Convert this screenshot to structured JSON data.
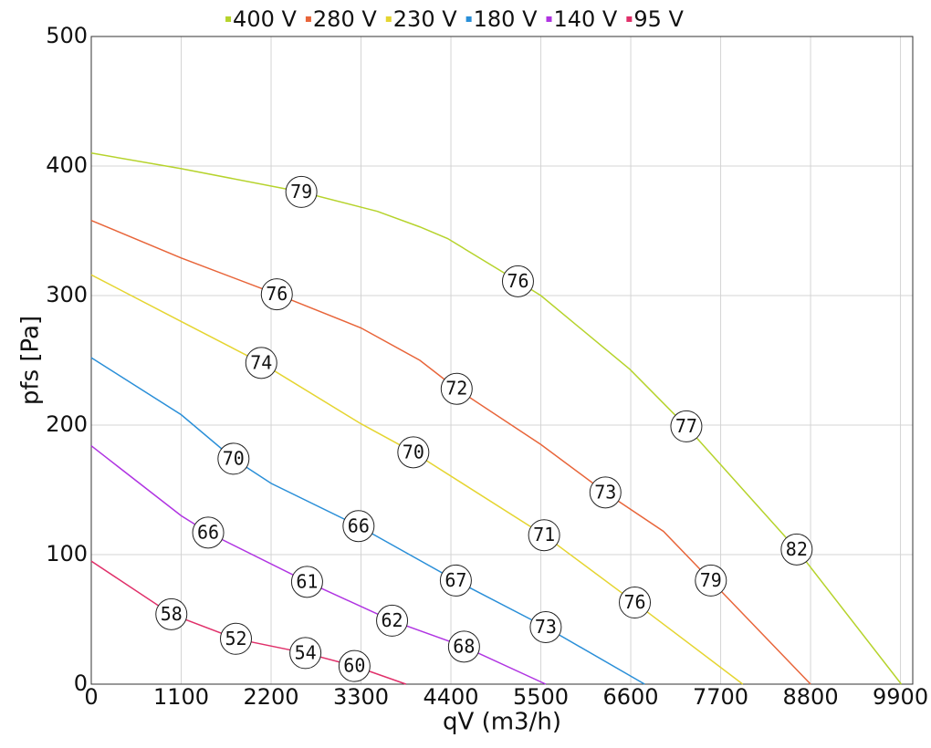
{
  "chart_data": {
    "type": "line",
    "x_label": "qV (m3/h)",
    "y_label": "pfs [Pa]",
    "xlim": [
      0,
      10050
    ],
    "ylim": [
      0,
      500
    ],
    "xticks": [
      0,
      1100,
      2200,
      3300,
      4400,
      5500,
      6600,
      7700,
      8800,
      9900
    ],
    "yticks": [
      0,
      100,
      200,
      300,
      400,
      500
    ],
    "grid": true,
    "series": [
      {
        "name": "400 V",
        "color": "#b6d32c",
        "x": [
          0,
          1100,
          2570,
          3500,
          4020,
          4360,
          5220,
          5500,
          6590,
          7280,
          8630,
          9910
        ],
        "values": [
          410,
          398,
          380,
          365,
          353,
          344,
          311,
          300,
          243,
          199,
          104,
          0
        ],
        "marker_x": [
          2570,
          5220,
          7280,
          8630
        ],
        "marker_y": [
          380,
          311,
          199,
          104
        ],
        "marker_labels": [
          79,
          76,
          77,
          82
        ]
      },
      {
        "name": "280 V",
        "color": "#e8653a",
        "x": [
          0,
          1100,
          2270,
          3300,
          4020,
          4470,
          5500,
          6290,
          7000,
          7580,
          8800
        ],
        "values": [
          358,
          329,
          301,
          275,
          250,
          228,
          185,
          148,
          118,
          80,
          0
        ],
        "marker_x": [
          2270,
          4470,
          6290,
          7580
        ],
        "marker_y": [
          301,
          228,
          148,
          80
        ],
        "marker_labels": [
          76,
          72,
          73,
          79
        ]
      },
      {
        "name": "230 V",
        "color": "#e5d531",
        "x": [
          0,
          1100,
          2080,
          3300,
          3940,
          5540,
          6650,
          7970
        ],
        "values": [
          316,
          280,
          248,
          201,
          179,
          115,
          63,
          0
        ],
        "marker_x": [
          2080,
          3940,
          5540,
          6650
        ],
        "marker_y": [
          248,
          179,
          115,
          63
        ],
        "marker_labels": [
          74,
          70,
          71,
          76
        ]
      },
      {
        "name": "180 V",
        "color": "#2a8fd8",
        "x": [
          0,
          1100,
          1740,
          2200,
          3270,
          4460,
          5560,
          6770
        ],
        "values": [
          252,
          208,
          174,
          155,
          122,
          80,
          44,
          0
        ],
        "marker_x": [
          1740,
          3270,
          4460,
          5560
        ],
        "marker_y": [
          174,
          122,
          80,
          44
        ],
        "marker_labels": [
          70,
          66,
          67,
          73
        ]
      },
      {
        "name": "140 V",
        "color": "#b034e2",
        "x": [
          0,
          1100,
          1430,
          2640,
          3680,
          4560,
          5560
        ],
        "values": [
          184,
          130,
          117,
          79,
          49,
          29,
          0
        ],
        "marker_x": [
          1430,
          2640,
          3680,
          4560
        ],
        "marker_y": [
          117,
          79,
          49,
          29
        ],
        "marker_labels": [
          66,
          61,
          62,
          68
        ]
      },
      {
        "name": "95 V",
        "color": "#e0306a",
        "x": [
          0,
          980,
          1770,
          2620,
          3220,
          3850
        ],
        "values": [
          95,
          54,
          35,
          24,
          14,
          0
        ],
        "marker_x": [
          980,
          1770,
          2620,
          3220
        ],
        "marker_y": [
          54,
          35,
          24,
          14
        ],
        "marker_labels": [
          58,
          52,
          54,
          60
        ]
      }
    ]
  }
}
